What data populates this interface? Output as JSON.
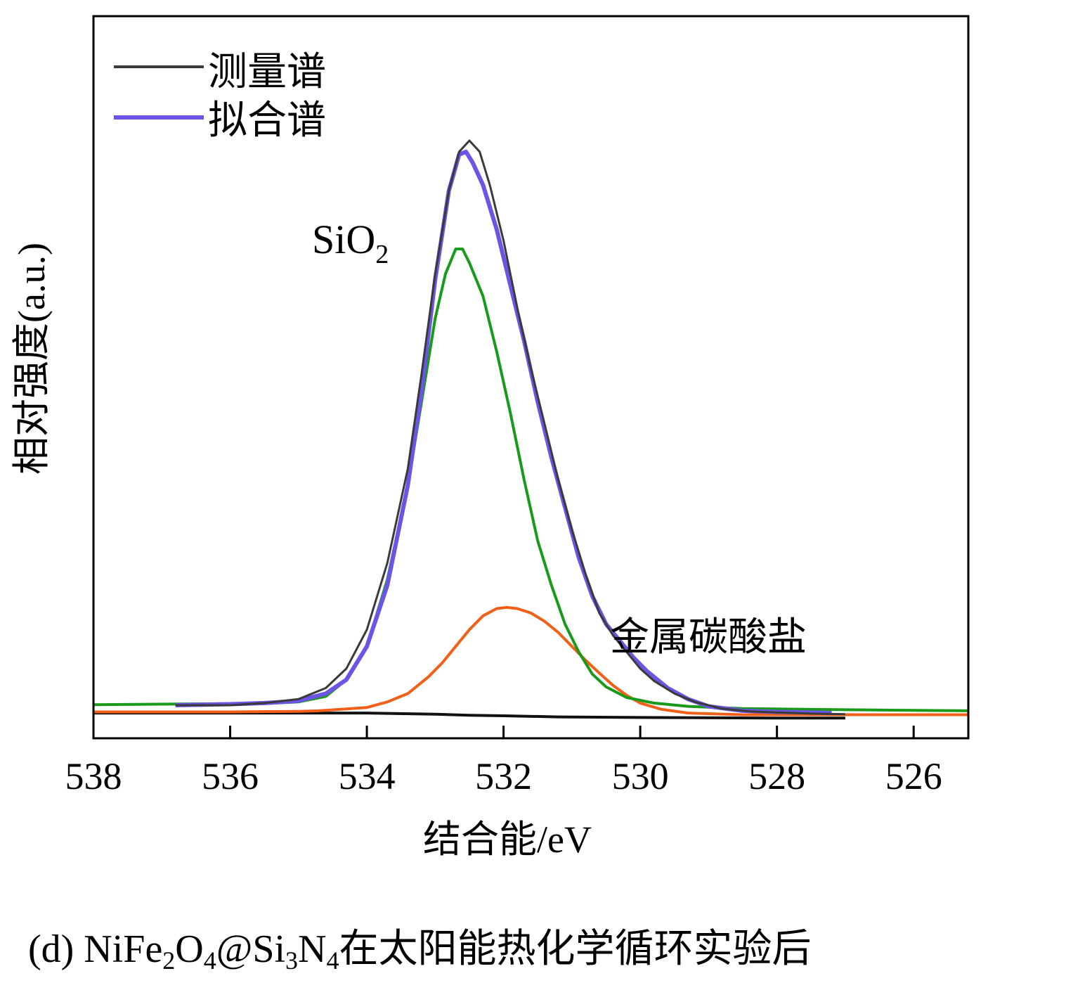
{
  "chart_data": {
    "type": "line",
    "title": "",
    "xlabel": "结合能/eV",
    "ylabel": "相对强度(a.u.)",
    "xlim": [
      538,
      525.2
    ],
    "x_reversed": true,
    "ylim": [
      0,
      1.05
    ],
    "x_ticks": [
      "538",
      "536",
      "534",
      "532",
      "530",
      "528",
      "526"
    ],
    "grid": false,
    "legend_position": "top-left",
    "legend": [
      {
        "label": "测量谱",
        "color": "#3a3a3a"
      },
      {
        "label": "拟合谱",
        "color": "#6b55e6"
      }
    ],
    "annotations": [
      {
        "text": "SiO",
        "subscript": "2",
        "x": 534.55,
        "y": 0.86
      },
      {
        "text": "金属碳酸盐",
        "x": 530.5,
        "y": 0.155
      }
    ],
    "series": [
      {
        "name": "测量谱",
        "color": "#3a3a3a",
        "points": [
          [
            536.8,
            0.024
          ],
          [
            536,
            0.024
          ],
          [
            535.5,
            0.028
          ],
          [
            535,
            0.035
          ],
          [
            534.6,
            0.055
          ],
          [
            534.3,
            0.09
          ],
          [
            534.0,
            0.16
          ],
          [
            533.7,
            0.28
          ],
          [
            533.4,
            0.45
          ],
          [
            533.2,
            0.62
          ],
          [
            533.0,
            0.8
          ],
          [
            532.8,
            0.95
          ],
          [
            532.65,
            1.02
          ],
          [
            532.5,
            1.04
          ],
          [
            532.35,
            1.02
          ],
          [
            532.2,
            0.96
          ],
          [
            532.0,
            0.86
          ],
          [
            531.8,
            0.74
          ],
          [
            531.6,
            0.63
          ],
          [
            531.4,
            0.53
          ],
          [
            531.2,
            0.43
          ],
          [
            531.0,
            0.34
          ],
          [
            530.8,
            0.26
          ],
          [
            530.6,
            0.19
          ],
          [
            530.4,
            0.15
          ],
          [
            530.2,
            0.12
          ],
          [
            530.0,
            0.09
          ],
          [
            529.8,
            0.068
          ],
          [
            529.5,
            0.045
          ],
          [
            529.2,
            0.03
          ],
          [
            528.8,
            0.018
          ],
          [
            528.4,
            0.013
          ],
          [
            528,
            0.011
          ],
          [
            527.5,
            0.009
          ],
          [
            527.0,
            0.008
          ]
        ]
      },
      {
        "name": "拟合谱",
        "color": "#6b55e6",
        "points": [
          [
            536.8,
            0.024
          ],
          [
            536,
            0.026
          ],
          [
            535.5,
            0.028
          ],
          [
            535,
            0.032
          ],
          [
            534.6,
            0.045
          ],
          [
            534.3,
            0.07
          ],
          [
            534.0,
            0.13
          ],
          [
            533.7,
            0.24
          ],
          [
            533.4,
            0.42
          ],
          [
            533.2,
            0.59
          ],
          [
            533.0,
            0.79
          ],
          [
            532.8,
            0.95
          ],
          [
            532.65,
            1.015
          ],
          [
            532.55,
            1.02
          ],
          [
            532.45,
            1.0
          ],
          [
            532.3,
            0.96
          ],
          [
            532.1,
            0.88
          ],
          [
            531.9,
            0.78
          ],
          [
            531.7,
            0.68
          ],
          [
            531.5,
            0.57
          ],
          [
            531.3,
            0.47
          ],
          [
            531.1,
            0.38
          ],
          [
            530.9,
            0.29
          ],
          [
            530.7,
            0.22
          ],
          [
            530.5,
            0.17
          ],
          [
            530.3,
            0.14
          ],
          [
            530.1,
            0.11
          ],
          [
            529.9,
            0.085
          ],
          [
            529.6,
            0.055
          ],
          [
            529.3,
            0.035
          ],
          [
            529,
            0.022
          ],
          [
            528.5,
            0.014
          ],
          [
            528,
            0.012
          ],
          [
            527.5,
            0.011
          ],
          [
            527.2,
            0.01
          ]
        ]
      },
      {
        "name": "",
        "color": "#1a9a1a",
        "points": [
          [
            538,
            0.025
          ],
          [
            536,
            0.027
          ],
          [
            535.5,
            0.027
          ],
          [
            535,
            0.03
          ],
          [
            534.6,
            0.04
          ],
          [
            534.3,
            0.07
          ],
          [
            534.0,
            0.13
          ],
          [
            533.7,
            0.25
          ],
          [
            533.4,
            0.42
          ],
          [
            533.2,
            0.57
          ],
          [
            533.0,
            0.72
          ],
          [
            532.85,
            0.8
          ],
          [
            532.7,
            0.845
          ],
          [
            532.6,
            0.845
          ],
          [
            532.5,
            0.82
          ],
          [
            532.3,
            0.76
          ],
          [
            532.1,
            0.66
          ],
          [
            531.9,
            0.55
          ],
          [
            531.7,
            0.43
          ],
          [
            531.5,
            0.32
          ],
          [
            531.3,
            0.24
          ],
          [
            531.1,
            0.17
          ],
          [
            530.9,
            0.12
          ],
          [
            530.7,
            0.08
          ],
          [
            530.5,
            0.057
          ],
          [
            530.2,
            0.038
          ],
          [
            529.8,
            0.028
          ],
          [
            529.3,
            0.022
          ],
          [
            528.5,
            0.018
          ],
          [
            527,
            0.016
          ],
          [
            525.2,
            0.014
          ]
        ]
      },
      {
        "name": "",
        "color": "#f06018",
        "points": [
          [
            538,
            0.012
          ],
          [
            536,
            0.012
          ],
          [
            535,
            0.013
          ],
          [
            534.7,
            0.014
          ],
          [
            534.0,
            0.02
          ],
          [
            533.7,
            0.03
          ],
          [
            533.4,
            0.045
          ],
          [
            533.1,
            0.075
          ],
          [
            532.9,
            0.1
          ],
          [
            532.7,
            0.13
          ],
          [
            532.5,
            0.16
          ],
          [
            532.3,
            0.185
          ],
          [
            532.1,
            0.198
          ],
          [
            531.95,
            0.2
          ],
          [
            531.8,
            0.198
          ],
          [
            531.6,
            0.19
          ],
          [
            531.4,
            0.175
          ],
          [
            531.2,
            0.155
          ],
          [
            531.0,
            0.13
          ],
          [
            530.8,
            0.105
          ],
          [
            530.6,
            0.082
          ],
          [
            530.4,
            0.06
          ],
          [
            530.2,
            0.042
          ],
          [
            530.0,
            0.028
          ],
          [
            529.7,
            0.017
          ],
          [
            529.3,
            0.01
          ],
          [
            528.5,
            0.007
          ],
          [
            527.5,
            0.007
          ],
          [
            525.2,
            0.007
          ]
        ]
      },
      {
        "name": "",
        "color": "#111111",
        "points": [
          [
            538,
            0.01
          ],
          [
            535,
            0.01
          ],
          [
            534,
            0.01
          ],
          [
            533,
            0.008
          ],
          [
            532.5,
            0.006
          ],
          [
            532,
            0.005
          ],
          [
            531.2,
            0.003
          ],
          [
            530,
            0.002
          ],
          [
            528,
            0.001
          ],
          [
            527,
            0.001
          ]
        ]
      }
    ]
  },
  "caption": {
    "prefix": "(d) NiFe",
    "sub1": "2",
    "part2": "O",
    "sub2": "4",
    "part3": "@Si",
    "sub3": "3",
    "part4": "N",
    "sub4": "4",
    "suffix": "在太阳能热化学循环实验后"
  }
}
